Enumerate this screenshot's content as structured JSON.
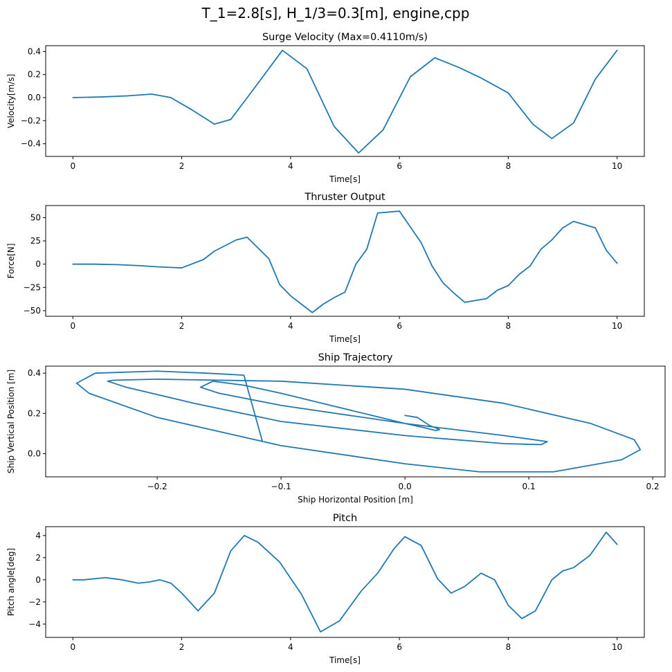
{
  "figure": {
    "suptitle": "T_1=2.8[s], H_1/3=0.3[m], engine,cpp"
  },
  "colors": {
    "line": "#1f77b4",
    "axes": "#000000",
    "background": "#ffffff"
  },
  "chart_data": [
    {
      "type": "line",
      "title": "Surge Velocity (Max=0.4110m/s)",
      "xlabel": "Time[s]",
      "ylabel": "Velocity[m/s]",
      "xlim": [
        -0.5,
        10.5
      ],
      "ylim": [
        -0.51,
        0.45
      ],
      "xticks": [
        0,
        2,
        4,
        6,
        8,
        10
      ],
      "xtick_labels": [
        "0",
        "2",
        "4",
        "6",
        "8",
        "10"
      ],
      "yticks": [
        -0.4,
        -0.2,
        0.0,
        0.2,
        0.4
      ],
      "ytick_labels": [
        "−0.4",
        "−0.2",
        "0.0",
        "0.2",
        "0.4"
      ],
      "grid": false,
      "series": [
        {
          "x": [
            0,
            0.5,
            1.0,
            1.45,
            1.8,
            2.2,
            2.6,
            2.9,
            3.3,
            3.85,
            4.3,
            4.8,
            5.25,
            5.7,
            6.2,
            6.65,
            7.1,
            7.5,
            8.0,
            8.45,
            8.8,
            9.2,
            9.6,
            10.0
          ],
          "y": [
            0.0,
            0.005,
            0.015,
            0.03,
            0.0,
            -0.11,
            -0.23,
            -0.19,
            0.06,
            0.41,
            0.25,
            -0.25,
            -0.48,
            -0.28,
            0.18,
            0.345,
            0.26,
            0.17,
            0.04,
            -0.23,
            -0.355,
            -0.22,
            0.16,
            0.41
          ]
        }
      ]
    },
    {
      "type": "line",
      "title": "Thruster Output",
      "xlabel": "Time[s]",
      "ylabel": "Force[N]",
      "xlim": [
        -0.5,
        10.5
      ],
      "ylim": [
        -56,
        63
      ],
      "xticks": [
        0,
        2,
        4,
        6,
        8,
        10
      ],
      "xtick_labels": [
        "0",
        "2",
        "4",
        "6",
        "8",
        "10"
      ],
      "yticks": [
        -50,
        -25,
        0,
        25,
        50
      ],
      "ytick_labels": [
        "−50",
        "−25",
        "0",
        "25",
        "50"
      ],
      "grid": false,
      "series": [
        {
          "x": [
            0,
            0.4,
            0.8,
            1.2,
            1.6,
            2.0,
            2.4,
            2.6,
            3.0,
            3.2,
            3.6,
            3.8,
            4.0,
            4.2,
            4.4,
            4.6,
            4.8,
            5.0,
            5.2,
            5.4,
            5.6,
            6.0,
            6.2,
            6.4,
            6.6,
            6.8,
            7.0,
            7.2,
            7.6,
            7.8,
            8.0,
            8.2,
            8.4,
            8.6,
            8.8,
            9.0,
            9.2,
            9.6,
            9.8,
            10.0
          ],
          "y": [
            0,
            0,
            -0.5,
            -1.5,
            -3,
            -4,
            5,
            14,
            26,
            29,
            6,
            -22,
            -34,
            -43,
            -52,
            -43,
            -36,
            -30,
            0,
            16,
            55,
            57,
            40,
            23,
            -2,
            -20,
            -31,
            -41,
            -37,
            -28,
            -23,
            -11,
            -2,
            16,
            26,
            39,
            46,
            39,
            15,
            1
          ]
        }
      ]
    },
    {
      "type": "line",
      "title": "Ship Trajectory",
      "xlabel": "Ship Horizontal Position [m]",
      "ylabel": "Ship Vertical Position [m]",
      "xlim": [
        -0.29,
        0.21
      ],
      "ylim": [
        -0.115,
        0.435
      ],
      "xticks": [
        -0.2,
        -0.1,
        0.0,
        0.1,
        0.2
      ],
      "xtick_labels": [
        "−0.2",
        "−0.1",
        "0.0",
        "0.1",
        "0.2"
      ],
      "yticks": [
        0.0,
        0.2,
        0.4
      ],
      "ytick_labels": [
        "0.0",
        "0.2",
        "0.4"
      ],
      "grid": false,
      "series": [
        {
          "x": [
            0.0,
            0.01,
            0.02,
            0.028,
            0.025,
            0.015,
            0.0,
            -0.02,
            -0.06,
            -0.1,
            -0.13,
            -0.155,
            -0.165,
            -0.15,
            -0.1,
            0.0,
            0.08,
            0.115,
            0.11,
            0.08,
            0.0,
            -0.1,
            -0.17,
            -0.225,
            -0.24,
            -0.235,
            -0.2,
            -0.1,
            0.0,
            0.08,
            0.15,
            0.185,
            0.19,
            0.175,
            0.12,
            0.06,
            0.0,
            -0.1,
            -0.2,
            -0.255,
            -0.265,
            -0.25,
            -0.2,
            -0.16,
            -0.13,
            -0.115
          ],
          "y": [
            0.19,
            0.18,
            0.14,
            0.12,
            0.115,
            0.13,
            0.15,
            0.18,
            0.24,
            0.3,
            0.34,
            0.36,
            0.33,
            0.3,
            0.24,
            0.15,
            0.09,
            0.06,
            0.045,
            0.05,
            0.09,
            0.16,
            0.25,
            0.33,
            0.36,
            0.365,
            0.37,
            0.36,
            0.32,
            0.25,
            0.15,
            0.07,
            0.02,
            -0.03,
            -0.09,
            -0.09,
            -0.05,
            0.04,
            0.18,
            0.3,
            0.35,
            0.4,
            0.41,
            0.4,
            0.39,
            0.06
          ]
        }
      ]
    },
    {
      "type": "line",
      "title": "Pitch",
      "xlabel": "Time[s]",
      "ylabel": "Pitch angle[deg]",
      "xlim": [
        -0.5,
        10.5
      ],
      "ylim": [
        -5.2,
        4.8
      ],
      "xticks": [
        0,
        2,
        4,
        6,
        8,
        10
      ],
      "xtick_labels": [
        "0",
        "2",
        "4",
        "6",
        "8",
        "10"
      ],
      "yticks": [
        -4,
        -2,
        0,
        2,
        4
      ],
      "ytick_labels": [
        "−4",
        "−2",
        "0",
        "2",
        "4"
      ],
      "grid": false,
      "series": [
        {
          "x": [
            0,
            0.2,
            0.6,
            0.9,
            1.2,
            1.4,
            1.6,
            1.8,
            2.0,
            2.3,
            2.6,
            2.9,
            3.15,
            3.4,
            3.8,
            4.2,
            4.55,
            4.9,
            5.3,
            5.6,
            5.9,
            6.1,
            6.4,
            6.7,
            6.95,
            7.2,
            7.5,
            7.75,
            8.0,
            8.25,
            8.5,
            8.8,
            9.0,
            9.2,
            9.5,
            9.8,
            10.0
          ],
          "y": [
            0,
            0,
            0.2,
            0.0,
            -0.3,
            -0.2,
            0.0,
            -0.3,
            -1.2,
            -2.8,
            -1.2,
            2.6,
            4.0,
            3.4,
            1.6,
            -1.3,
            -4.7,
            -3.7,
            -1.0,
            0.6,
            2.8,
            3.9,
            3.1,
            0.1,
            -1.2,
            -0.6,
            0.6,
            0.0,
            -2.3,
            -3.5,
            -2.8,
            0.0,
            0.8,
            1.1,
            2.2,
            4.3,
            3.2
          ]
        }
      ]
    }
  ]
}
